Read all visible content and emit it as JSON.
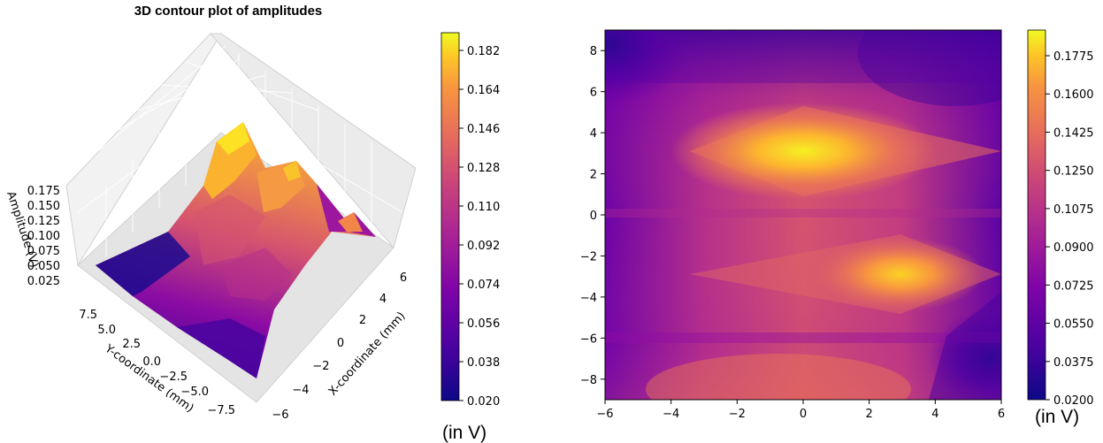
{
  "chart_data": [
    {
      "type": "surface3d",
      "title": "3D contour plot of amplitudes",
      "xlabel": "X-coordinate (mm)",
      "ylabel": "Y-coordinate (mm)",
      "zlabel": "Amplitude (V)",
      "x_ticks": [
        "−6",
        "−4",
        "−2",
        "0",
        "2",
        "4",
        "6"
      ],
      "y_ticks": [
        "7.5",
        "5.0",
        "2.5",
        "0.0",
        "−2.5",
        "−5.0",
        "−7.5"
      ],
      "z_ticks": [
        "0.175",
        "0.150",
        "0.125",
        "0.100",
        "0.075",
        "0.050",
        "0.025"
      ],
      "zlim": [
        0.02,
        0.19
      ],
      "colormap": "plasma",
      "colorbar": {
        "ticks": [
          "0.182",
          "0.164",
          "0.146",
          "0.128",
          "0.110",
          "0.092",
          "0.074",
          "0.056",
          "0.038",
          "0.020"
        ],
        "unit_label": "(in V)"
      }
    },
    {
      "type": "heatmap",
      "title": "",
      "xlabel": "",
      "ylabel": "",
      "xlim": [
        -6,
        6
      ],
      "ylim": [
        -9,
        9
      ],
      "x_ticks": [
        "−6",
        "−4",
        "−2",
        "0",
        "2",
        "4",
        "6"
      ],
      "y_ticks": [
        "8",
        "6",
        "4",
        "2",
        "0",
        "−2",
        "−4",
        "−6",
        "−8"
      ],
      "peaks": [
        {
          "x": 0,
          "y": 3,
          "amplitude": 0.19
        },
        {
          "x": 3,
          "y": -3,
          "amplitude": 0.17
        }
      ],
      "colormap": "plasma",
      "colorbar": {
        "ticks": [
          "0.1775",
          "0.1600",
          "0.1425",
          "0.1250",
          "0.1075",
          "0.0900",
          "0.0725",
          "0.0550",
          "0.0375",
          "0.0200"
        ],
        "unit_label": "(in V)"
      }
    }
  ],
  "colors": {
    "plasma_low": "#0d0887",
    "plasma_mid": "#cc4778",
    "plasma_high": "#f0f921"
  }
}
